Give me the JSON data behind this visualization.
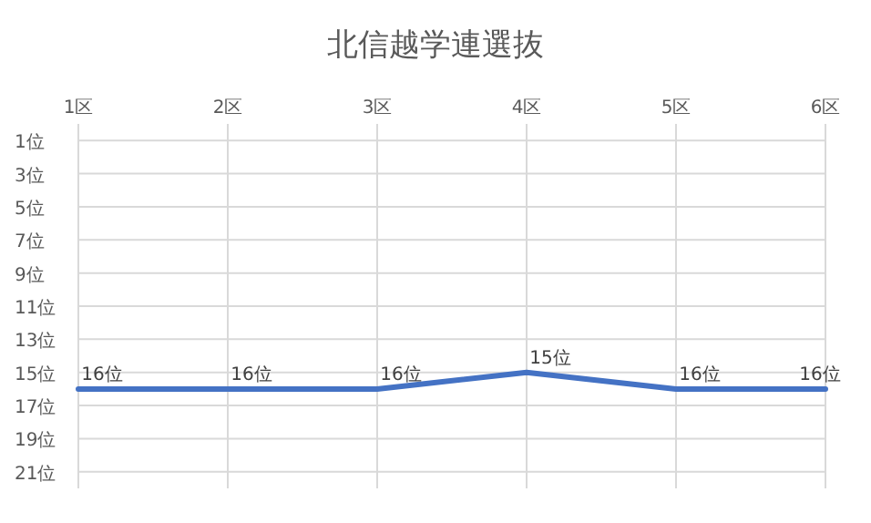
{
  "chart_data": {
    "type": "line",
    "title": "北信越学連選抜",
    "categories": [
      "1区",
      "2区",
      "3区",
      "4区",
      "5区",
      "6区"
    ],
    "values": [
      16,
      16,
      16,
      15,
      16,
      16
    ],
    "value_labels": [
      "16位",
      "16位",
      "16位",
      "15位",
      "16位",
      "16位"
    ],
    "color": "#4472c4",
    "ylim": [
      22,
      0
    ],
    "yticks": [
      {
        "value": 1,
        "label": "1位"
      },
      {
        "value": 3,
        "label": "3位"
      },
      {
        "value": 5,
        "label": "5位"
      },
      {
        "value": 7,
        "label": "7位"
      },
      {
        "value": 9,
        "label": "9位"
      },
      {
        "value": 11,
        "label": "11位"
      },
      {
        "value": 13,
        "label": "13位"
      },
      {
        "value": 15,
        "label": "15位"
      },
      {
        "value": 17,
        "label": "17位"
      },
      {
        "value": 19,
        "label": "19位"
      },
      {
        "value": 21,
        "label": "21位"
      }
    ],
    "grid": true,
    "marker": "none",
    "line_style": "solid"
  }
}
